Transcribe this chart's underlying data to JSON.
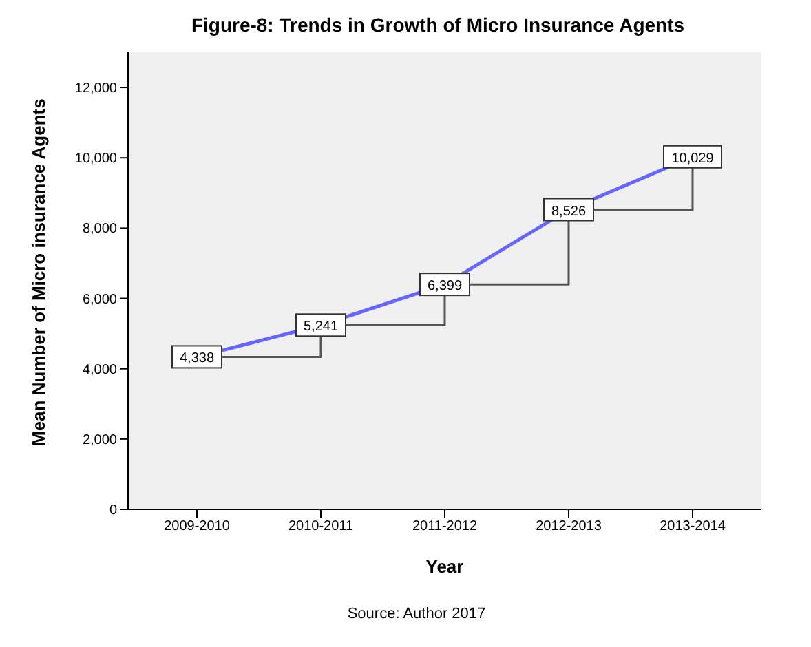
{
  "chart_data": {
    "type": "line",
    "title": "Figure-8: Trends in Growth of  Micro Insurance Agents",
    "xlabel": "Year",
    "ylabel": "Mean Number of Micro insurance Agents",
    "categories": [
      "2009-2010",
      "2010-2011",
      "2011-2012",
      "2012-2013",
      "2013-2014"
    ],
    "series": [
      {
        "color": "#6666ff",
        "marker": "square",
        "values": [
          4338,
          5241,
          6399,
          8526,
          10029
        ],
        "value_labels": [
          "4,338",
          "5,241",
          "6,399",
          "8,526",
          "10,029"
        ]
      },
      {
        "type": "step",
        "color": "#555555",
        "values": [
          4338,
          5241,
          6399,
          8526,
          10029
        ]
      }
    ],
    "ylim": [
      0,
      13000
    ],
    "yticks": [
      0,
      {
        "value": 2000,
        "label": "2,000"
      },
      {
        "value": 4000,
        "label": "4,000"
      },
      {
        "value": 6000,
        "label": "6,000"
      },
      {
        "value": 8000,
        "label": "8,000"
      },
      {
        "value": 10000,
        "label": "10,000"
      },
      {
        "value": 12000,
        "label": "12,000"
      }
    ],
    "grid": false,
    "legend": false,
    "annotations": [
      "Source: Author 2017"
    ]
  }
}
